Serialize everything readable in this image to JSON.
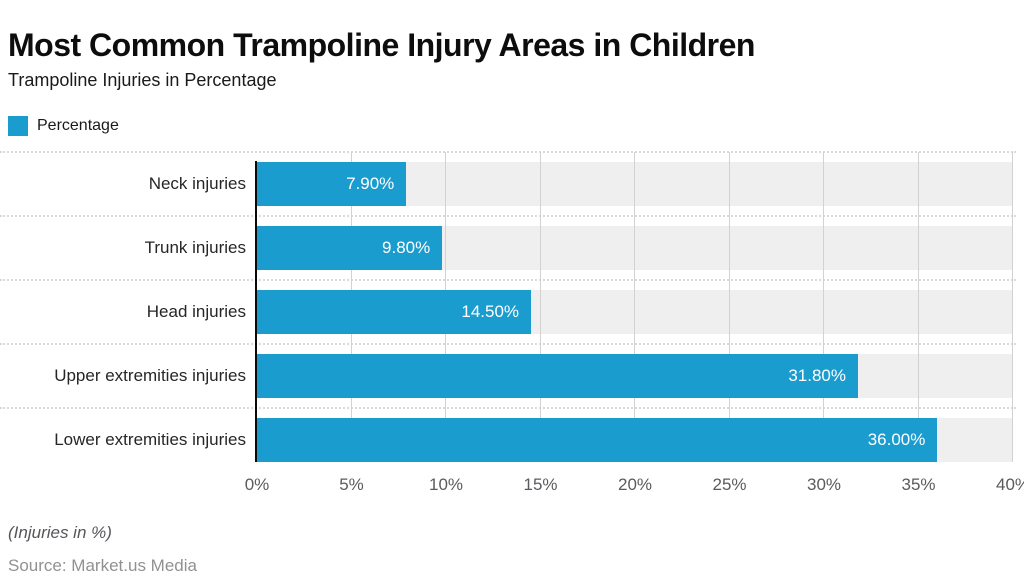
{
  "header": {
    "title": "Most Common Trampoline Injury Areas in Children",
    "subtitle": "Trampoline Injuries in Percentage"
  },
  "legend": {
    "label": "Percentage",
    "swatch_color": "#1a9cce"
  },
  "chart_data": {
    "type": "bar",
    "orientation": "horizontal",
    "title": "Most Common Trampoline Injury Areas in Children",
    "subtitle": "Trampoline Injuries in Percentage",
    "series_name": "Percentage",
    "categories": [
      "Neck injuries",
      "Trunk injuries",
      "Head injuries",
      "Upper extremities injuries",
      "Lower extremities injuries"
    ],
    "values": [
      7.9,
      9.8,
      14.5,
      31.8,
      36.0
    ],
    "value_labels": [
      "7.90%",
      "9.80%",
      "14.50%",
      "31.80%",
      "36.00%"
    ],
    "xlim": [
      0,
      40
    ],
    "x_ticks": [
      0,
      5,
      10,
      15,
      20,
      25,
      30,
      35,
      40
    ],
    "x_tick_labels": [
      "0%",
      "5%",
      "10%",
      "15%",
      "20%",
      "25%",
      "30%",
      "35%",
      "40%"
    ],
    "grid": true,
    "legend_position": "top-left",
    "colors": {
      "bar": "#1a9cce",
      "band": "#efefef",
      "gridline": "#d2d2d2",
      "separator": "#d9d9d9",
      "axis_line": "#0a0a0a",
      "value_text": "#ffffff",
      "tick_text": "#5a5b5e",
      "category_text": "#262626"
    }
  },
  "footer": {
    "note": "(Injuries in %)",
    "source": "Source: Market.us Media"
  }
}
